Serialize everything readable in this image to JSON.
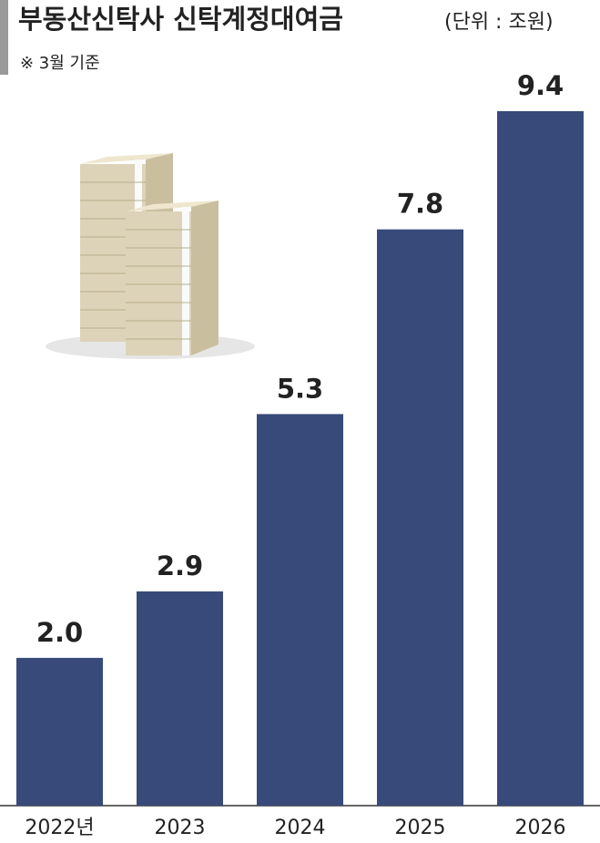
{
  "chart_data": {
    "type": "bar",
    "title": "부동산신탁사 신탁계정대여금",
    "subtitle": "(단위 : 조원)",
    "note": "※ 3월 기준",
    "categories": [
      "2022년",
      "2023",
      "2024",
      "2025",
      "2026"
    ],
    "values": [
      2.0,
      2.9,
      5.3,
      7.8,
      9.4
    ],
    "value_labels": [
      "2.0",
      "2.9",
      "5.3",
      "7.8",
      "9.4"
    ],
    "color": "#374a79"
  }
}
